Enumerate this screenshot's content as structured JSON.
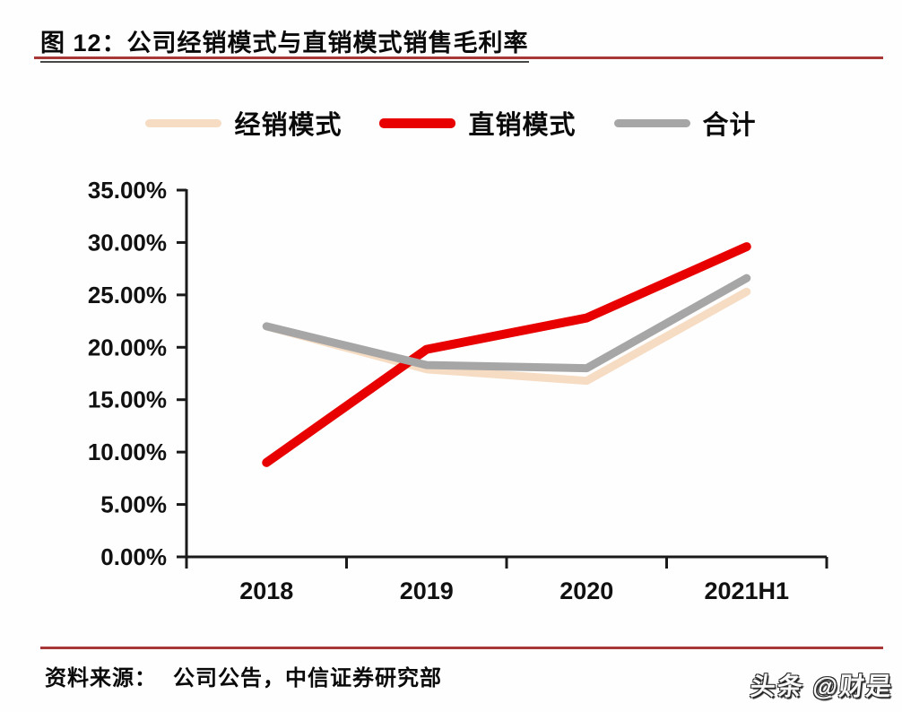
{
  "header": {
    "title": "图 12：公司经销模式与直销模式销售毛利率"
  },
  "footer": {
    "source_label": "资料来源：",
    "source_text": "公司公告，中信证券研究部"
  },
  "watermark": {
    "text": "头条 @财是"
  },
  "colors": {
    "accent_rule": "#a83838",
    "axis": "#1a1a1a",
    "series_jingxiao": "#f6dcc3",
    "series_zhixiao": "#e80000",
    "series_heji": "#a6a6a6"
  },
  "chart_data": {
    "type": "line",
    "title": "图 12：公司经销模式与直销模式销售毛利率",
    "categories": [
      "2018",
      "2019",
      "2020",
      "2021H1"
    ],
    "series": [
      {
        "name": "经销模式",
        "color": "#f6dcc3",
        "values": [
          22.0,
          17.9,
          16.8,
          25.3
        ]
      },
      {
        "name": "直销模式",
        "color": "#e80000",
        "values": [
          9.0,
          19.8,
          22.8,
          29.6
        ]
      },
      {
        "name": "合计",
        "color": "#a6a6a6",
        "values": [
          22.0,
          18.3,
          18.0,
          26.6
        ]
      }
    ],
    "xlabel": "",
    "ylabel": "",
    "y_axis": {
      "min": 0,
      "max": 35,
      "step": 5,
      "tick_labels": [
        "0.00%",
        "5.00%",
        "10.00%",
        "15.00%",
        "20.00%",
        "25.00%",
        "30.00%",
        "35.00%"
      ]
    },
    "legend_position": "top",
    "grid": false,
    "line_width": 9
  }
}
